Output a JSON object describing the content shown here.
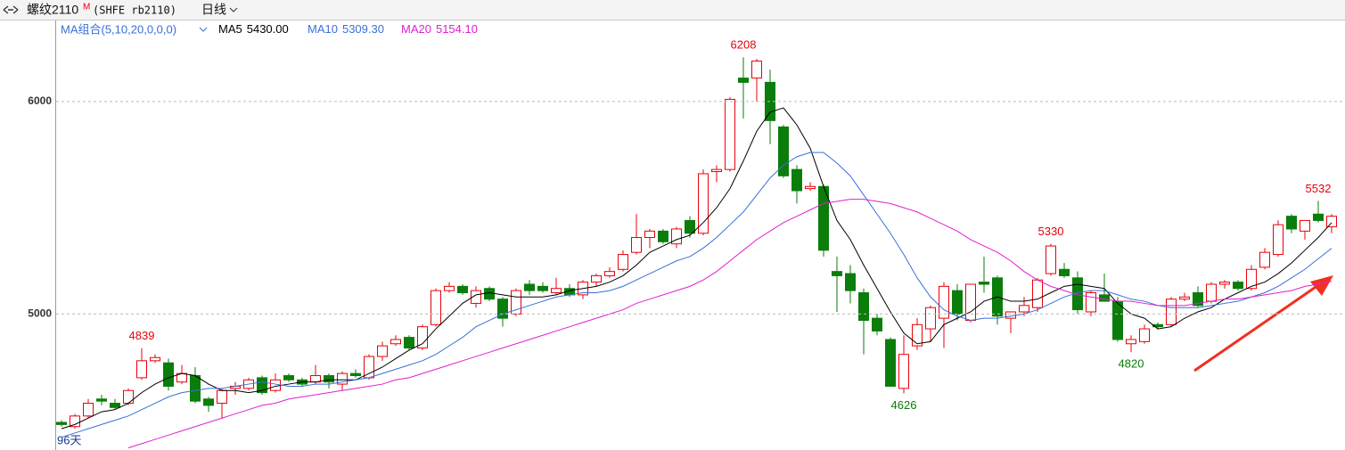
{
  "header": {
    "symbol": "螺纹2110",
    "flag": "M",
    "code": "(SHFE rb2110)",
    "period": "日线"
  },
  "chart_data": {
    "type": "candlestick",
    "legend_title": "MA组合(5,10,20,0,0,0)",
    "days_label": "96天",
    "open": [
      4490,
      4470,
      4520,
      4600,
      4580,
      4580,
      4700,
      4780,
      4770,
      4680,
      4710,
      4600,
      4580,
      4650,
      4650,
      4700,
      4640,
      4710,
      4690,
      4680,
      4710,
      4670,
      4720,
      4700,
      4800,
      4860,
      4890,
      4840,
      4950,
      5110,
      5130,
      5050,
      5120,
      5070,
      5000,
      5140,
      5130,
      5100,
      5120,
      5090,
      5150,
      5180,
      5210,
      5290,
      5360,
      5390,
      5330,
      5440,
      5380,
      5670,
      5680,
      6110,
      6110,
      6090,
      5880,
      5680,
      5590,
      5600,
      5200,
      5190,
      5100,
      4980,
      4880,
      4650,
      4850,
      4930,
      4980,
      5110,
      4970,
      5150,
      5170,
      4980,
      5010,
      5030,
      5190,
      5210,
      5170,
      5010,
      5090,
      5060,
      4860,
      4870,
      4950,
      4950,
      5070,
      5100,
      5060,
      5140,
      5150,
      5120,
      5220,
      5280,
      5460,
      5390,
      5470,
      5410
    ],
    "high": [
      4500,
      4530,
      4600,
      4620,
      4600,
      4650,
      4839,
      4810,
      4790,
      4760,
      4750,
      4610,
      4650,
      4680,
      4700,
      4710,
      4720,
      4720,
      4700,
      4760,
      4720,
      4730,
      4740,
      4810,
      4870,
      4900,
      4900,
      4950,
      5120,
      5150,
      5140,
      5130,
      5130,
      5080,
      5120,
      5160,
      5150,
      5170,
      5140,
      5160,
      5190,
      5220,
      5300,
      5470,
      5400,
      5400,
      5410,
      5460,
      5680,
      5700,
      6020,
      6208,
      6200,
      6150,
      5890,
      5700,
      5620,
      5610,
      5270,
      5230,
      5120,
      5000,
      4890,
      4900,
      4980,
      5040,
      5150,
      5140,
      5140,
      5270,
      5180,
      5010,
      5080,
      5170,
      5330,
      5240,
      5200,
      5110,
      5190,
      5080,
      4900,
      4950,
      4960,
      5080,
      5100,
      5130,
      5150,
      5160,
      5160,
      5230,
      5310,
      5440,
      5470,
      5440,
      5532,
      5470
    ],
    "low": [
      4470,
      4460,
      4510,
      4570,
      4550,
      4570,
      4690,
      4770,
      4640,
      4670,
      4580,
      4540,
      4510,
      4620,
      4640,
      4620,
      4630,
      4680,
      4660,
      4670,
      4650,
      4640,
      4700,
      4690,
      4780,
      4850,
      4830,
      4830,
      4940,
      5100,
      5090,
      5030,
      5060,
      4940,
      4990,
      5090,
      5100,
      5090,
      5080,
      5070,
      5130,
      5170,
      5200,
      5280,
      5310,
      5330,
      5310,
      5360,
      5370,
      5620,
      5670,
      5920,
      6000,
      5800,
      5640,
      5520,
      5580,
      5270,
      5010,
      5050,
      4810,
      4900,
      4660,
      4626,
      4830,
      4870,
      4840,
      4970,
      4960,
      5100,
      4950,
      4910,
      4990,
      5010,
      5180,
      5170,
      5000,
      4990,
      5060,
      4870,
      4820,
      4860,
      4930,
      4940,
      5060,
      5030,
      5050,
      5120,
      5110,
      5110,
      5210,
      5270,
      5380,
      5350,
      5430,
      5380
    ],
    "close": [
      4480,
      4520,
      4580,
      4590,
      4560,
      4640,
      4780,
      4795,
      4660,
      4720,
      4590,
      4570,
      4640,
      4660,
      4690,
      4630,
      4690,
      4690,
      4670,
      4710,
      4680,
      4720,
      4710,
      4800,
      4850,
      4880,
      4840,
      4940,
      5110,
      5130,
      5100,
      5110,
      5070,
      4980,
      5110,
      5110,
      5110,
      5120,
      5090,
      5150,
      5180,
      5200,
      5280,
      5360,
      5390,
      5340,
      5400,
      5380,
      5660,
      5680,
      6010,
      6090,
      6190,
      5910,
      5650,
      5580,
      5600,
      5300,
      5180,
      5110,
      4970,
      4920,
      4660,
      4810,
      4950,
      5030,
      5130,
      5000,
      5140,
      5140,
      4990,
      5010,
      5040,
      5160,
      5320,
      5180,
      5020,
      5100,
      5060,
      4880,
      4880,
      4930,
      4940,
      5070,
      5080,
      5040,
      5140,
      5150,
      5120,
      5210,
      5290,
      5420,
      5400,
      5440,
      5440,
      5460
    ],
    "up_color": "#e8000b",
    "down_color": "#0a7d0a",
    "series": [
      {
        "name": "MA5",
        "color": "#000000",
        "value_label": "5430.00",
        "values": [
          4460,
          4480,
          4510,
          4540,
          4550,
          4580,
          4630,
          4670,
          4700,
          4720,
          4710,
          4670,
          4640,
          4640,
          4630,
          4640,
          4660,
          4670,
          4680,
          4680,
          4690,
          4690,
          4690,
          4720,
          4750,
          4790,
          4830,
          4860,
          4930,
          4990,
          5050,
          5090,
          5100,
          5090,
          5080,
          5080,
          5080,
          5090,
          5110,
          5120,
          5130,
          5150,
          5180,
          5230,
          5290,
          5320,
          5350,
          5370,
          5430,
          5500,
          5590,
          5720,
          5860,
          5950,
          5970,
          5890,
          5780,
          5600,
          5440,
          5350,
          5230,
          5120,
          5010,
          4910,
          4860,
          4870,
          4950,
          4980,
          5010,
          5060,
          5080,
          5060,
          5060,
          5070,
          5100,
          5130,
          5140,
          5130,
          5120,
          5050,
          5000,
          4980,
          4930,
          4940,
          4980,
          5010,
          5030,
          5070,
          5100,
          5130,
          5150,
          5190,
          5240,
          5300,
          5360,
          5430
        ]
      },
      {
        "name": "MA10",
        "color": "#3a6fd8",
        "value_label": "5309.30",
        "values": [
          4420,
          4440,
          4460,
          4480,
          4500,
          4520,
          4550,
          4580,
          4610,
          4630,
          4640,
          4650,
          4650,
          4660,
          4670,
          4680,
          4670,
          4660,
          4660,
          4670,
          4670,
          4680,
          4690,
          4700,
          4720,
          4740,
          4760,
          4780,
          4810,
          4850,
          4890,
          4940,
          4970,
          5000,
          5020,
          5040,
          5060,
          5080,
          5090,
          5100,
          5100,
          5110,
          5130,
          5160,
          5190,
          5220,
          5250,
          5270,
          5310,
          5360,
          5420,
          5480,
          5560,
          5640,
          5700,
          5740,
          5760,
          5760,
          5710,
          5650,
          5560,
          5470,
          5380,
          5280,
          5170,
          5080,
          5020,
          4990,
          4970,
          4980,
          4980,
          4990,
          5000,
          5020,
          5050,
          5080,
          5100,
          5110,
          5110,
          5090,
          5070,
          5060,
          5040,
          5030,
          5030,
          5030,
          5040,
          5050,
          5060,
          5080,
          5100,
          5130,
          5170,
          5210,
          5260,
          5309.3
        ]
      },
      {
        "name": "MA20",
        "color": "#e020d0",
        "value_label": "5154.10",
        "values": [
          null,
          null,
          null,
          null,
          null,
          4370,
          4390,
          4410,
          4430,
          4450,
          4470,
          4490,
          4510,
          4530,
          4550,
          4570,
          4580,
          4600,
          4610,
          4620,
          4630,
          4640,
          4650,
          4660,
          4670,
          4690,
          4700,
          4720,
          4740,
          4760,
          4780,
          4800,
          4820,
          4840,
          4860,
          4880,
          4900,
          4920,
          4940,
          4960,
          4980,
          5000,
          5020,
          5050,
          5070,
          5090,
          5110,
          5130,
          5160,
          5200,
          5250,
          5300,
          5350,
          5390,
          5430,
          5460,
          5490,
          5520,
          5530,
          5540,
          5540,
          5530,
          5520,
          5500,
          5480,
          5450,
          5420,
          5390,
          5350,
          5320,
          5290,
          5250,
          5200,
          5160,
          5130,
          5110,
          5090,
          5080,
          5070,
          5060,
          5060,
          5050,
          5040,
          5040,
          5040,
          5050,
          5060,
          5070,
          5070,
          5080,
          5090,
          5100,
          5110,
          5130,
          5140,
          5154.1
        ]
      }
    ],
    "annotations": [
      6208,
      5330,
      5532,
      4839,
      4626,
      4820
    ],
    "ylim": [
      4360,
      6381
    ],
    "yticks": [
      5000,
      6000
    ],
    "grid": true
  }
}
